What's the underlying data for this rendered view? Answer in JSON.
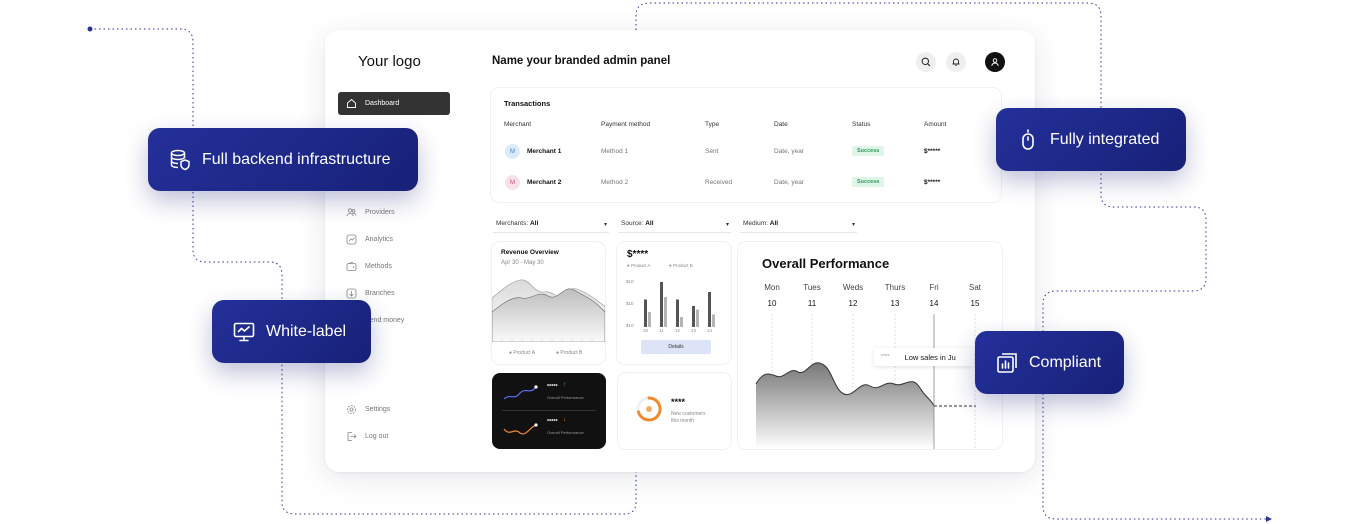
{
  "app": {
    "logo": "Your logo",
    "title": "Name your branded admin panel"
  },
  "header_icons": [
    "search-icon",
    "bell-icon",
    "user-icon"
  ],
  "sidebar": {
    "items": [
      {
        "label": "Dashboard",
        "icon": "home-icon",
        "active": true
      },
      {
        "label": "Providers",
        "icon": "users-icon"
      },
      {
        "label": "Analytics",
        "icon": "chart-line-icon"
      },
      {
        "label": "Methods",
        "icon": "wallet-icon"
      },
      {
        "label": "Branches",
        "icon": "branch-icon"
      },
      {
        "label": "Send money",
        "icon": "send-icon"
      },
      {
        "label": "Settings",
        "icon": "gear-icon"
      },
      {
        "label": "Log out",
        "icon": "logout-icon"
      }
    ]
  },
  "transactions": {
    "title": "Transactions",
    "columns": [
      "Merchant",
      "Payment method",
      "Type",
      "Date",
      "Status",
      "Amount"
    ],
    "rows": [
      {
        "initial": "M",
        "merchant": "Merchant 1",
        "method": "Method 1",
        "type": "Sent",
        "date": "Date, year",
        "status": "Success",
        "amount": "$*****"
      },
      {
        "initial": "M",
        "merchant": "Merchant 2",
        "method": "Method 2",
        "type": "Received",
        "date": "Date, year",
        "status": "Success",
        "amount": "$*****"
      }
    ]
  },
  "filters": {
    "merchants": {
      "label": "Merchants:",
      "value": "All"
    },
    "source": {
      "label": "Source:",
      "value": "All"
    },
    "medium": {
      "label": "Medium:",
      "value": "All"
    }
  },
  "revenue": {
    "title": "Revenue Overview",
    "range": "Apr 30 - May 30",
    "legend": [
      "Product A",
      "Product B"
    ]
  },
  "bars": {
    "value": "$****",
    "legend": [
      "Product A",
      "Product B"
    ],
    "y_ticks": [
      "$10",
      "$10",
      "$10"
    ],
    "x_ticks": [
      "10",
      "11",
      "12",
      "13",
      "14"
    ],
    "button": "Details",
    "series_a": [
      0.55,
      0.9,
      0.55,
      0.42,
      0.7
    ],
    "series_b": [
      0.3,
      0.6,
      0.2,
      0.35,
      0.25
    ]
  },
  "dark_card": {
    "rows": [
      {
        "value": "*****",
        "label": "Overall Performance",
        "color": "#5b6cff"
      },
      {
        "value": "*****",
        "label": "Overall Performance",
        "color": "#f08a2a"
      }
    ]
  },
  "customers": {
    "value": "****",
    "label_line1": "New customers",
    "label_line2": "this month"
  },
  "performance": {
    "title": "Overall Performance",
    "days": [
      {
        "day": "Mon",
        "date": "10"
      },
      {
        "day": "Tues",
        "date": "11"
      },
      {
        "day": "Weds",
        "date": "12"
      },
      {
        "day": "Thurs",
        "date": "13"
      },
      {
        "day": "Fri",
        "date": "14"
      },
      {
        "day": "Sat",
        "date": "15"
      }
    ],
    "tooltip_value": "****",
    "tooltip_text": "Low sales in Ju"
  },
  "badges": {
    "backend": "Full backend infrastructure",
    "integrated": "Fully integrated",
    "whitelabel": "White-label",
    "compliant": "Compliant"
  },
  "colors": {
    "badge": "#1f2a8a",
    "accent_blue": "#5b6cff",
    "accent_orange": "#f08a2a",
    "success": "#2c9a5d"
  }
}
